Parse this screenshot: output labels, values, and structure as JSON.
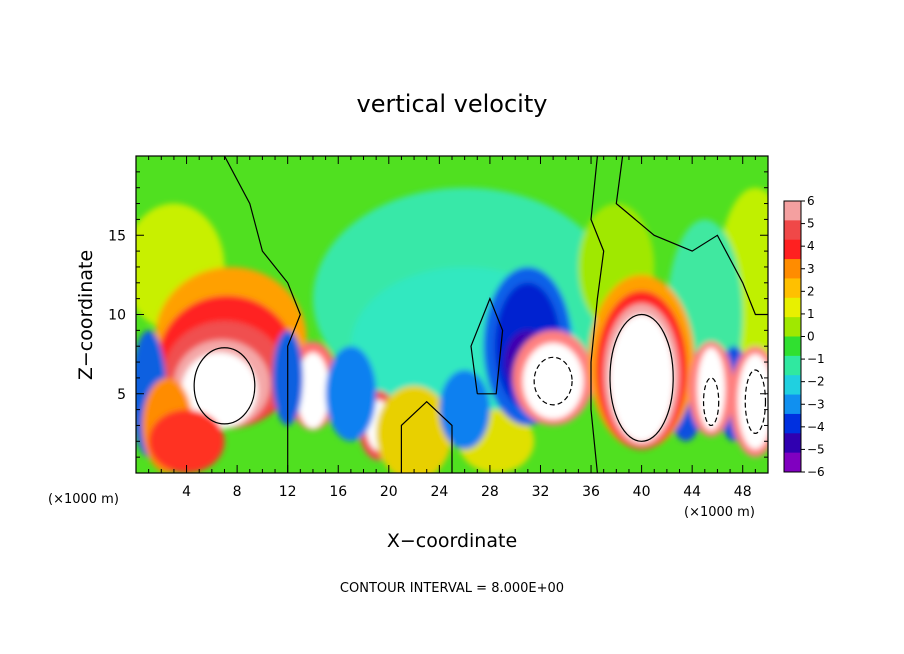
{
  "chart_data": {
    "type": "heatmap",
    "title": "vertical velocity",
    "xlabel": "X−coordinate",
    "ylabel": "Z−coordinate",
    "x_unit": "(×1000 m)",
    "z_unit": "(×1000 m)",
    "annotation": "CONTOUR INTERVAL = 8.000E+00",
    "xlim": [
      0,
      50
    ],
    "ylim": [
      0,
      20
    ],
    "x_ticks": [
      4,
      8,
      12,
      16,
      20,
      24,
      28,
      32,
      36,
      40,
      44,
      48
    ],
    "x_tick_labels": [
      "4",
      "8",
      "12",
      "16",
      "20",
      "24",
      "28",
      "32",
      "36",
      "40",
      "44",
      "48"
    ],
    "y_ticks": [
      5,
      10,
      15
    ],
    "y_tick_labels": [
      "5",
      "10",
      "15"
    ],
    "colorbar": {
      "levels": [
        6,
        5,
        4,
        3,
        2,
        1,
        0,
        -1,
        -2,
        -3,
        -4,
        -5,
        -6
      ],
      "labels": [
        "6",
        "5",
        "4",
        "3",
        "2",
        "1",
        "0",
        "−1",
        "−2",
        "−3",
        "−4",
        "−5",
        "−6"
      ],
      "colors": [
        "#f4a0a0",
        "#f04848",
        "#ff2020",
        "#ff8c00",
        "#ffc000",
        "#e8f000",
        "#a0e800",
        "#30e030",
        "#30e8a0",
        "#20d0e0",
        "#1090f0",
        "#0030e0",
        "#3000b0",
        "#8000c0"
      ]
    },
    "features": [
      {
        "kind": "updraft",
        "x_center": 7,
        "z_center": 6,
        "peak": 12
      },
      {
        "kind": "updraft",
        "x_center": 14,
        "z_center": 5,
        "peak": 8
      },
      {
        "kind": "updraft",
        "x_center": 19,
        "z_center": 3,
        "peak": 7
      },
      {
        "kind": "updraft",
        "x_center": 33,
        "z_center": 6,
        "peak": 10
      },
      {
        "kind": "updraft",
        "x_center": 40,
        "z_center": 6,
        "peak": 12
      },
      {
        "kind": "updraft",
        "x_center": 45.5,
        "z_center": 5,
        "peak": 8
      },
      {
        "kind": "updraft",
        "x_center": 49,
        "z_center": 4,
        "peak": 9
      },
      {
        "kind": "downdraft",
        "x_center": 31,
        "z_center": 9,
        "peak": -5
      },
      {
        "kind": "downdraft",
        "x_center": 26,
        "z_center": 4,
        "peak": -4
      },
      {
        "kind": "downdraft",
        "x_center": 44,
        "z_center": 5,
        "peak": -5
      }
    ]
  }
}
